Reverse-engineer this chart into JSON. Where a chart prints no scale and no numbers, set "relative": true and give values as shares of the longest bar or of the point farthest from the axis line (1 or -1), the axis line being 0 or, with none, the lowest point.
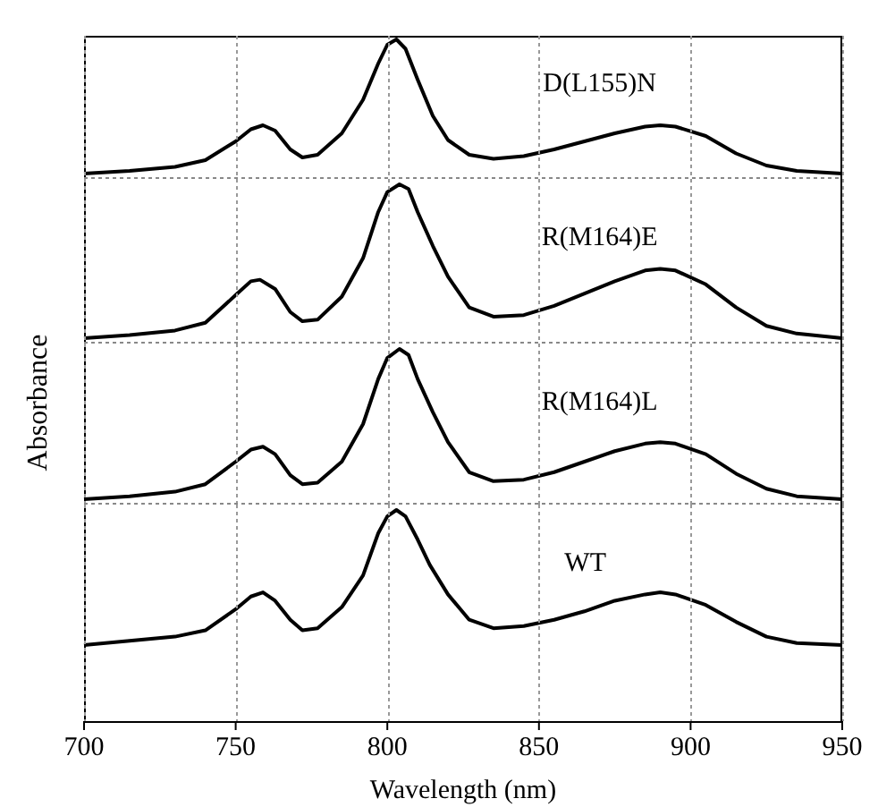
{
  "chart_data": [
    {
      "type": "line",
      "annotations": [
        "D(L155)N"
      ],
      "x": [
        700,
        715,
        730,
        740,
        750,
        755,
        759,
        763,
        768,
        772,
        777,
        785,
        792,
        797,
        800,
        803,
        806,
        810,
        815,
        820,
        827,
        835,
        845,
        855,
        865,
        875,
        885,
        890,
        895,
        905,
        915,
        925,
        935,
        950
      ],
      "series": [
        {
          "color": "#000000",
          "values": [
            0,
            0.02,
            0.05,
            0.1,
            0.24,
            0.33,
            0.36,
            0.32,
            0.18,
            0.12,
            0.14,
            0.3,
            0.55,
            0.82,
            0.96,
            1.0,
            0.93,
            0.7,
            0.43,
            0.25,
            0.14,
            0.11,
            0.13,
            0.18,
            0.24,
            0.3,
            0.35,
            0.36,
            0.35,
            0.28,
            0.15,
            0.06,
            0.02,
            0.0
          ]
        }
      ],
      "relative": true,
      "xlim": [
        700,
        950
      ],
      "xticks": [
        700,
        750,
        800,
        850,
        900,
        950
      ],
      "grid": "x",
      "tick_labels": false
    },
    {
      "type": "line",
      "annotations": [
        "R(M164)E"
      ],
      "x": [
        700,
        715,
        730,
        740,
        750,
        755,
        758,
        763,
        768,
        772,
        777,
        785,
        792,
        797,
        800,
        804,
        807,
        810,
        815,
        820,
        827,
        835,
        845,
        855,
        865,
        875,
        885,
        890,
        895,
        905,
        915,
        925,
        935,
        950
      ],
      "series": [
        {
          "color": "#000000",
          "values": [
            0,
            0.02,
            0.05,
            0.1,
            0.28,
            0.37,
            0.38,
            0.32,
            0.17,
            0.11,
            0.12,
            0.27,
            0.52,
            0.82,
            0.95,
            1.0,
            0.97,
            0.82,
            0.6,
            0.4,
            0.2,
            0.14,
            0.15,
            0.21,
            0.29,
            0.37,
            0.44,
            0.45,
            0.44,
            0.35,
            0.2,
            0.08,
            0.03,
            0.0
          ]
        }
      ],
      "relative": true,
      "xlim": [
        700,
        950
      ],
      "xticks": [
        700,
        750,
        800,
        850,
        900,
        950
      ],
      "grid": "x",
      "tick_labels": false
    },
    {
      "type": "line",
      "annotations": [
        "R(M164)L"
      ],
      "ylabel": "Absorbance",
      "x": [
        700,
        715,
        730,
        740,
        750,
        755,
        759,
        763,
        768,
        772,
        777,
        785,
        792,
        797,
        800,
        804,
        807,
        810,
        815,
        820,
        827,
        835,
        845,
        855,
        865,
        875,
        885,
        890,
        895,
        905,
        915,
        925,
        935,
        950
      ],
      "series": [
        {
          "color": "#000000",
          "values": [
            0,
            0.02,
            0.05,
            0.1,
            0.25,
            0.33,
            0.35,
            0.3,
            0.16,
            0.1,
            0.11,
            0.25,
            0.5,
            0.8,
            0.94,
            1.0,
            0.96,
            0.8,
            0.58,
            0.38,
            0.18,
            0.12,
            0.13,
            0.18,
            0.25,
            0.32,
            0.37,
            0.38,
            0.37,
            0.3,
            0.17,
            0.07,
            0.02,
            0.0
          ]
        }
      ],
      "relative": true,
      "xlim": [
        700,
        950
      ],
      "xticks": [
        700,
        750,
        800,
        850,
        900,
        950
      ],
      "grid": "x",
      "tick_labels": false
    },
    {
      "type": "line",
      "annotations": [
        "WT"
      ],
      "xlabel": "Wavelength (nm)",
      "x": [
        700,
        715,
        730,
        740,
        750,
        755,
        759,
        763,
        768,
        772,
        777,
        785,
        792,
        797,
        800,
        803,
        806,
        810,
        814,
        820,
        827,
        835,
        845,
        855,
        865,
        875,
        885,
        890,
        895,
        905,
        915,
        925,
        935,
        950
      ],
      "series": [
        {
          "color": "#000000",
          "values": [
            0.36,
            0.38,
            0.4,
            0.43,
            0.53,
            0.59,
            0.61,
            0.57,
            0.48,
            0.43,
            0.44,
            0.54,
            0.69,
            0.89,
            0.97,
            1.0,
            0.97,
            0.86,
            0.74,
            0.6,
            0.48,
            0.44,
            0.45,
            0.48,
            0.52,
            0.57,
            0.6,
            0.61,
            0.6,
            0.55,
            0.47,
            0.4,
            0.37,
            0.36
          ]
        }
      ],
      "relative": true,
      "xlim": [
        700,
        950
      ],
      "xticks": [
        700,
        750,
        800,
        850,
        900,
        950
      ],
      "grid": "x",
      "tick_labels": "x"
    }
  ]
}
